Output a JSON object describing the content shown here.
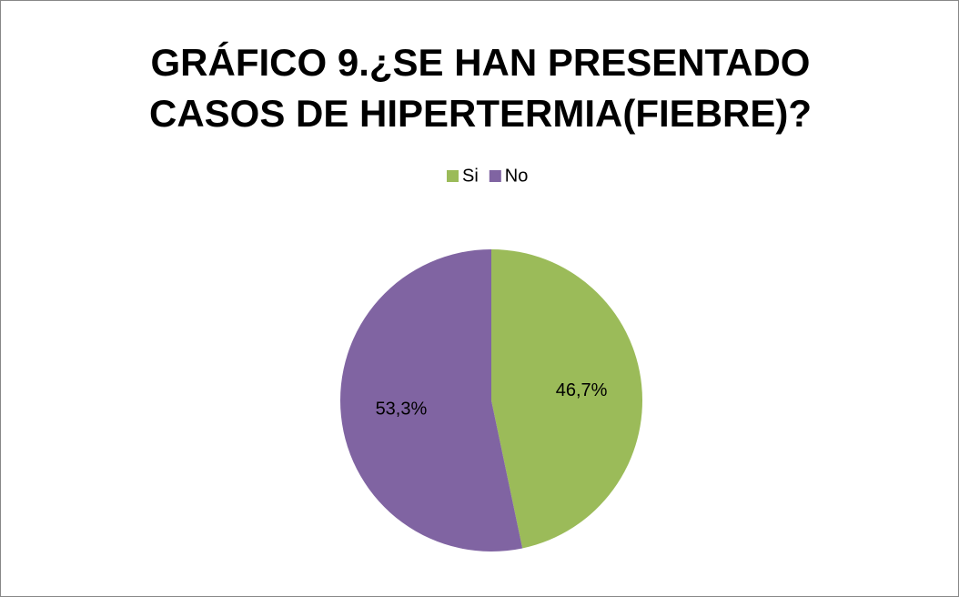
{
  "chart_data": {
    "type": "pie",
    "title": "GRÁFICO 9.¿SE HAN PRESENTADO CASOS DE HIPERTERMIA(FIEBRE)?",
    "categories": [
      "Si",
      "No"
    ],
    "values": [
      46.7,
      53.3
    ],
    "value_labels": [
      "46,7%",
      "53,3%"
    ],
    "colors": [
      "#9bbb59",
      "#8064a2"
    ],
    "legend": "top"
  }
}
